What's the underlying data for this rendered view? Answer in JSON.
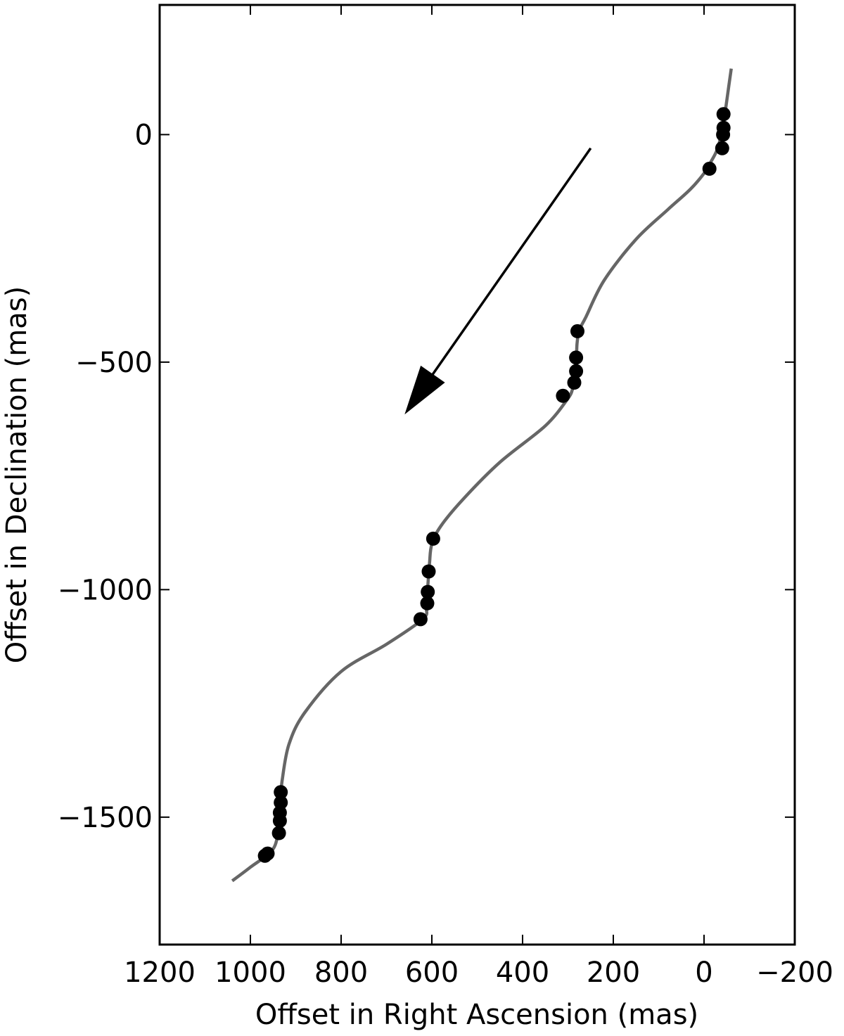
{
  "chart_data": {
    "type": "scatter",
    "title": "",
    "xlabel": "Offset in Right Ascension (mas)",
    "ylabel": "Offset in Declination (mas)",
    "xlim": [
      1200,
      -200
    ],
    "ylim": [
      -1780,
      285
    ],
    "x_inverted": true,
    "xticks": [
      1200,
      1000,
      800,
      600,
      400,
      200,
      0,
      -200
    ],
    "xtick_labels": [
      "1200",
      "1000",
      "800",
      "600",
      "400",
      "200",
      "0",
      "−200"
    ],
    "yticks": [
      0,
      -500,
      -1000,
      -1500
    ],
    "ytick_labels": [
      "0",
      "−500",
      "−1000",
      "−1500"
    ],
    "grid": false,
    "colors": {
      "curve": "#666666",
      "points": "#000000",
      "arrow": "#000000"
    },
    "series": [
      {
        "type": "line",
        "x": [
          -60,
          -55,
          -48,
          -42,
          -30,
          -15,
          0,
          30,
          80,
          150,
          220,
          260,
          275,
          280,
          281,
          282,
          283,
          290,
          300,
          350,
          450,
          530,
          580,
          600,
          605,
          608,
          610,
          612,
          620,
          700,
          800,
          880,
          915,
          930,
          933,
          935,
          938,
          950,
          1000,
          1040
        ],
        "y": [
          145,
          110,
          60,
          20,
          -30,
          -60,
          -85,
          -120,
          -165,
          -230,
          -320,
          -400,
          -430,
          -460,
          -490,
          -520,
          -545,
          -560,
          -580,
          -640,
          -720,
          -800,
          -860,
          -900,
          -940,
          -980,
          -1010,
          -1040,
          -1065,
          -1120,
          -1180,
          -1270,
          -1340,
          -1420,
          -1460,
          -1490,
          -1520,
          -1570,
          -1610,
          -1640
        ]
      },
      {
        "type": "scatter",
        "x": [
          -43,
          -43,
          -42,
          -40,
          -12,
          279,
          282,
          282,
          286,
          311,
          597,
          607,
          609,
          610,
          625,
          933,
          933,
          935,
          935,
          937,
          962,
          968
        ],
        "y": [
          45,
          15,
          0,
          -30,
          -75,
          -432,
          -490,
          -520,
          -545,
          -574,
          -888,
          -960,
          -1005,
          -1030,
          -1065,
          -1445,
          -1468,
          -1490,
          -1508,
          -1535,
          -1580,
          -1585
        ]
      }
    ],
    "arrow": {
      "from": [
        250,
        -30
      ],
      "to": [
        660,
        -615
      ]
    }
  }
}
